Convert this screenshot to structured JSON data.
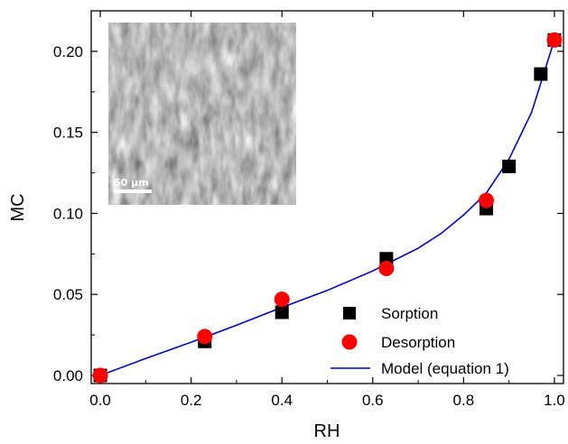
{
  "chart_data": {
    "type": "scatter",
    "xlabel": "RH",
    "ylabel": "MC",
    "xlim": [
      -0.02,
      1.02
    ],
    "ylim": [
      -0.005,
      0.225
    ],
    "x_ticks": [
      "0.0",
      "0.2",
      "0.4",
      "0.6",
      "0.8",
      "1.0"
    ],
    "y_ticks": [
      "0.00",
      "0.05",
      "0.10",
      "0.15",
      "0.20"
    ],
    "grid": false,
    "legend_position": "bottom-right",
    "series": [
      {
        "name": "Sorption",
        "marker": "square",
        "color": "#000000",
        "x": [
          0.0,
          0.23,
          0.4,
          0.63,
          0.85,
          0.9,
          0.97,
          1.0
        ],
        "y": [
          0.0,
          0.021,
          0.039,
          0.072,
          0.103,
          0.129,
          0.186,
          0.207
        ]
      },
      {
        "name": "Desorption",
        "marker": "circle",
        "color": "#ff0000",
        "x": [
          0.0,
          0.23,
          0.4,
          0.63,
          0.85,
          1.0
        ],
        "y": [
          0.0,
          0.024,
          0.047,
          0.066,
          0.108,
          0.207
        ]
      },
      {
        "name": "Model (equation 1)",
        "marker": "line",
        "color": "#0000cc",
        "x": [
          0.0,
          0.1,
          0.2,
          0.3,
          0.4,
          0.5,
          0.6,
          0.65,
          0.7,
          0.75,
          0.8,
          0.85,
          0.9,
          0.95,
          1.0
        ],
        "y": [
          0.0,
          0.0105,
          0.0205,
          0.031,
          0.042,
          0.0525,
          0.0645,
          0.0715,
          0.0785,
          0.0875,
          0.099,
          0.1125,
          0.1335,
          0.1625,
          0.207
        ]
      }
    ],
    "inset": {
      "scale_label": "50 µm"
    }
  }
}
